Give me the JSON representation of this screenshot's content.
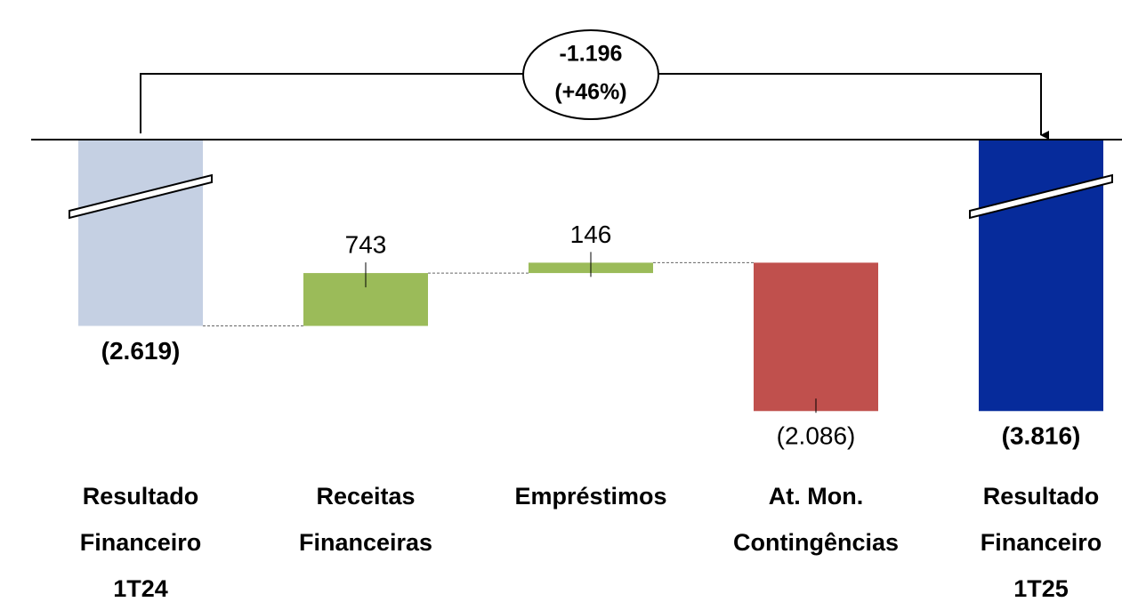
{
  "chart_data": {
    "type": "waterfall",
    "categories": [
      [
        "Resultado",
        "Financeiro",
        "1T24"
      ],
      [
        "Receitas",
        "Financeiras"
      ],
      [
        "Empréstimos"
      ],
      [
        "At. Mon.",
        "Contingências"
      ],
      [
        "Resultado",
        "Financeiro",
        "1T25"
      ]
    ],
    "values": [
      -2619,
      743,
      146,
      -2086,
      -3816
    ],
    "value_labels": [
      "(2.619)",
      "743",
      "146",
      "(2.086)",
      "(3.816)"
    ],
    "totals": [
      true,
      false,
      false,
      false,
      true
    ],
    "colors": [
      "#c5d0e3",
      "#9bbb59",
      "#9bbb59",
      "#c0504d",
      "#062b9b"
    ],
    "ylim": [
      -4000,
      0
    ],
    "annotation": [
      "-1.196",
      "(+46%)"
    ]
  }
}
